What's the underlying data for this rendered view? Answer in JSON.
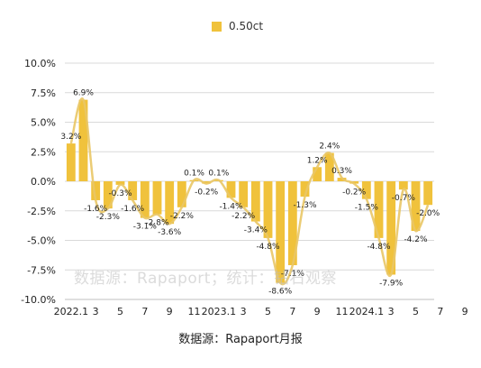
{
  "chart_data": {
    "type": "bar",
    "title": "",
    "xlabel": "",
    "ylabel": "",
    "ylim": [
      -10,
      10
    ],
    "y_ticks": [
      10,
      7.5,
      5,
      2.5,
      0,
      -2.5,
      -5,
      -7.5,
      -10
    ],
    "y_tick_format": "percent_1dp",
    "grid": true,
    "legend_position": "top",
    "x_tick_labels": [
      {
        "index": 0,
        "label": "2022.1"
      },
      {
        "index": 2,
        "label": "3"
      },
      {
        "index": 4,
        "label": "5"
      },
      {
        "index": 6,
        "label": "7"
      },
      {
        "index": 8,
        "label": "9"
      },
      {
        "index": 10,
        "label": "11"
      },
      {
        "index": 12,
        "label": "2023.1"
      },
      {
        "index": 14,
        "label": "3"
      },
      {
        "index": 16,
        "label": "5"
      },
      {
        "index": 18,
        "label": "7"
      },
      {
        "index": 20,
        "label": "9"
      },
      {
        "index": 22,
        "label": "11"
      },
      {
        "index": 24,
        "label": "2024.1"
      },
      {
        "index": 26,
        "label": "3"
      },
      {
        "index": 28,
        "label": "5"
      },
      {
        "index": 30,
        "label": "7"
      },
      {
        "index": 32,
        "label": "9"
      }
    ],
    "series": [
      {
        "name": "0.50ct",
        "color": "#F0C23C",
        "values": [
          3.2,
          6.9,
          -1.6,
          -2.3,
          -0.3,
          -1.6,
          -3.1,
          -2.8,
          -3.6,
          -2.2,
          0.1,
          -0.2,
          0.1,
          -1.4,
          -2.2,
          -3.4,
          -4.8,
          -8.6,
          -7.1,
          -1.3,
          1.2,
          2.4,
          0.3,
          -0.2,
          -1.5,
          -4.8,
          -7.9,
          -0.7,
          -4.2,
          -2.0
        ]
      }
    ],
    "data_labels": [
      "3.2%",
      "6.9%",
      "-1.6%",
      "-2.3%",
      "-0.3%",
      "-1.6%",
      "-3.1%",
      "-2.8%",
      "-3.6%",
      "-2.2%",
      "0.1%",
      "-0.2%",
      "0.1%",
      "-1.4%",
      "-2.2%",
      "-3.4%",
      "-4.8%",
      "-8.6%",
      "-7.1%",
      "-1.3%",
      "1.2%",
      "2.4%",
      "0.3%",
      "-0.2%",
      "-1.5%",
      "-4.8%",
      "-7.9%",
      "-0.7%",
      "-4.2%",
      "-2.0%"
    ],
    "trend_line": {
      "type": "smooth",
      "color": "#E9C766"
    }
  },
  "legend": {
    "label": "0.50ct",
    "swatch_color": "#F0C23C"
  },
  "watermark": "数据源：Rapaport；统计：钻石观察",
  "caption": "数据源：Rapaport月报",
  "colors": {
    "bar": "#F0C23C",
    "trend": "#E9C766",
    "grid": "#d9d9d9",
    "text": "#222222"
  }
}
